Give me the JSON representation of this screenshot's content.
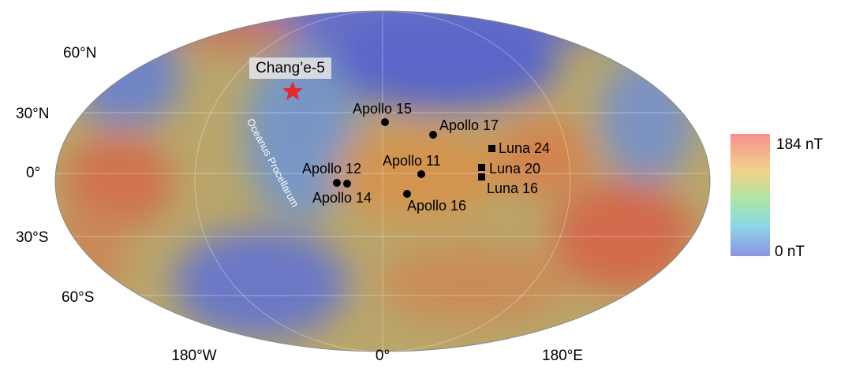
{
  "latitude_labels": [
    "60°N",
    "30°N",
    "0°",
    "30°S",
    "60°S"
  ],
  "longitude_labels": [
    "180°W",
    "0°",
    "180°E"
  ],
  "landing_site": "Chang’e-5",
  "region_label": "Oceanus Procellarum",
  "sites": [
    "Apollo 15",
    "Apollo 17",
    "Luna 24",
    "Apollo 11",
    "Apollo 12",
    "Luna 20",
    "Apollo 14",
    "Luna 16",
    "Apollo 16"
  ],
  "colorbar": {
    "max_label": "184 nT",
    "min_label": "0 nT"
  }
}
